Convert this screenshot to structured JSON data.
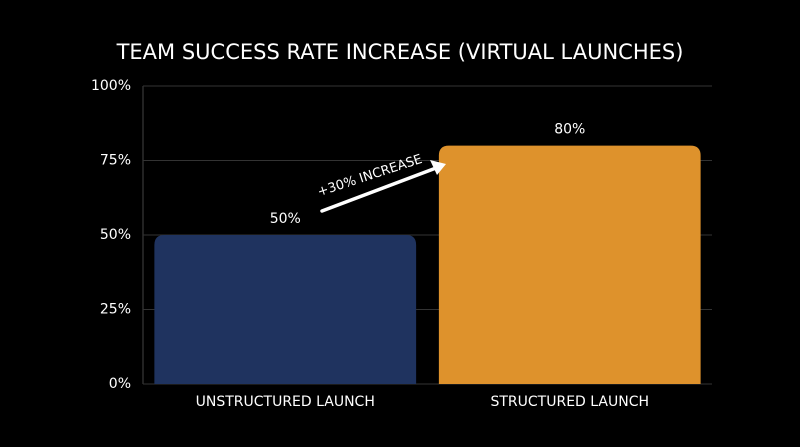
{
  "chart_data": {
    "type": "bar",
    "title": "TEAM SUCCESS RATE INCREASE (VIRTUAL LAUNCHES)",
    "categories": [
      "UNSTRUCTURED LAUNCH",
      "STRUCTURED LAUNCH"
    ],
    "values": [
      50,
      80
    ],
    "value_labels": [
      "50%",
      "80%"
    ],
    "colors": [
      "#1f335f",
      "#de922c"
    ],
    "annotation": "+30% INCREASE",
    "ylim": [
      0,
      100
    ],
    "yticks": [
      {
        "value": 0,
        "label": "0%"
      },
      {
        "value": 25,
        "label": "25%"
      },
      {
        "value": 50,
        "label": "50%"
      },
      {
        "value": 75,
        "label": "75%"
      },
      {
        "value": 100,
        "label": "100%"
      }
    ],
    "grid": true
  }
}
